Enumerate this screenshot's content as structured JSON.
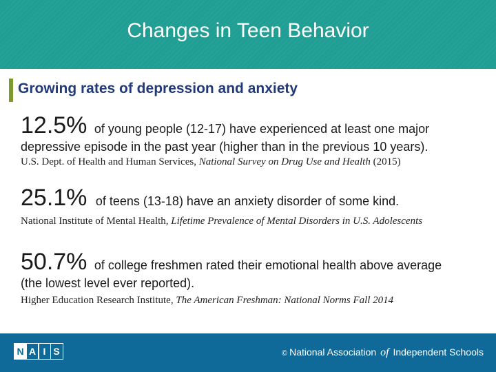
{
  "header": {
    "title": "Changes in Teen Behavior"
  },
  "subtitle": "Growing rates of depression and anxiety",
  "stats": [
    {
      "value": "12.5%",
      "text": "of young people (12-17) have experienced at least one major",
      "text_cont": "depressive episode in the past year (higher than in the previous 10 years).",
      "source_pre": "U.S. Dept. of Health and Human Services, ",
      "source_title": "National Survey on Drug Use and Health",
      "source_post": " (2015)"
    },
    {
      "value": "25.1%",
      "text": "of teens (13-18) have an anxiety disorder of some kind.",
      "source_pre": "National Institute of Mental Health, ",
      "source_title": "Lifetime Prevalence of Mental Disorders in U.S. Adolescents",
      "source_post": ""
    },
    {
      "value": "50.7%",
      "text": "of college freshmen rated their emotional health above average",
      "text_cont": "(the lowest level ever reported).",
      "source_pre": "Higher Education Research Institute, ",
      "source_title": "The American Freshman: National Norms Fall 2014",
      "source_post": ""
    }
  ],
  "footer": {
    "logo_letters": [
      "N",
      "A",
      "I",
      "S"
    ],
    "copyright": "©",
    "org_part1": "National Association",
    "org_of": "of",
    "org_part2": "Independent Schools"
  },
  "colors": {
    "header_bg": "#1f9e94",
    "footer_bg": "#0f6a99",
    "subtitle": "#233a7a",
    "accent_bar": "#7f9a2e"
  }
}
